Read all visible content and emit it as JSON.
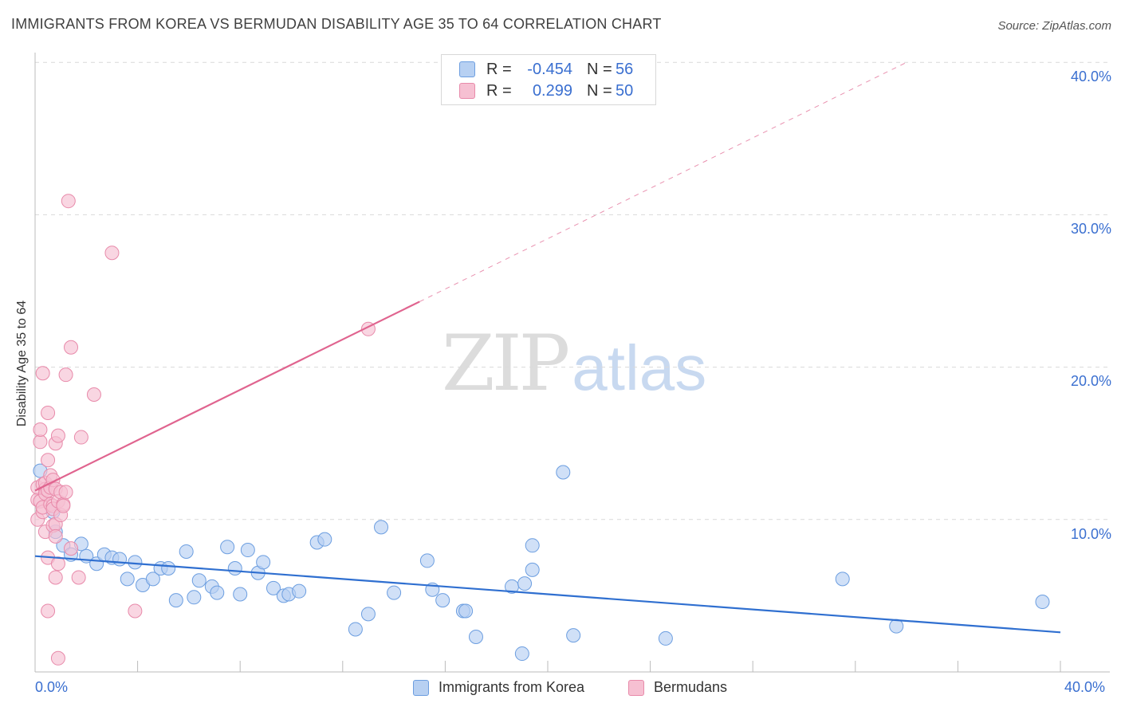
{
  "title": "IMMIGRANTS FROM KOREA VS BERMUDAN DISABILITY AGE 35 TO 64 CORRELATION CHART",
  "source": "Source: ZipAtlas.com",
  "watermark": {
    "zip": "ZIP",
    "atlas": "atlas"
  },
  "legend": {
    "r_label": "R =",
    "n_label": "N =",
    "rows": [
      {
        "r": "-0.454",
        "n": "56"
      },
      {
        "r": "0.299",
        "n": "50"
      }
    ]
  },
  "colors": {
    "blue_fill": "#b7d0f2",
    "blue_stroke": "#6c9ee0",
    "blue_line": "#2f6fd0",
    "pink_fill": "#f6c0d2",
    "pink_stroke": "#e88aaa",
    "pink_line": "#e0648f",
    "grid": "#d9d9d9"
  },
  "chart_data": {
    "type": "scatter",
    "title": "IMMIGRANTS FROM KOREA VS BERMUDAN DISABILITY AGE 35 TO 64 CORRELATION CHART",
    "xlabel": "",
    "ylabel": "Disability Age 35 to 64",
    "xlim": [
      0,
      40
    ],
    "ylim": [
      0,
      40
    ],
    "x_tick_labels": [
      "0.0%",
      "40.0%"
    ],
    "y_tick_labels": [
      "10.0%",
      "20.0%",
      "30.0%",
      "40.0%"
    ],
    "y_ticks": [
      10,
      20,
      30,
      40
    ],
    "legend_position": "bottom",
    "series": [
      {
        "name": "Immigrants from Korea",
        "color": "blue",
        "r": -0.454,
        "n": 56,
        "trend": {
          "x": [
            0,
            40
          ],
          "y": [
            7.6,
            2.6
          ],
          "dashed_from": null
        },
        "points": [
          [
            0.2,
            13.2
          ],
          [
            0.7,
            10.5
          ],
          [
            0.8,
            9.2
          ],
          [
            1.1,
            8.3
          ],
          [
            1.4,
            7.7
          ],
          [
            1.8,
            8.4
          ],
          [
            2.0,
            7.6
          ],
          [
            2.4,
            7.1
          ],
          [
            2.7,
            7.7
          ],
          [
            3.0,
            7.5
          ],
          [
            3.3,
            7.4
          ],
          [
            3.6,
            6.1
          ],
          [
            3.9,
            7.2
          ],
          [
            4.2,
            5.7
          ],
          [
            4.6,
            6.1
          ],
          [
            4.9,
            6.8
          ],
          [
            5.2,
            6.8
          ],
          [
            5.5,
            4.7
          ],
          [
            5.9,
            7.9
          ],
          [
            6.2,
            4.9
          ],
          [
            6.4,
            6.0
          ],
          [
            6.9,
            5.6
          ],
          [
            7.1,
            5.2
          ],
          [
            7.5,
            8.2
          ],
          [
            7.8,
            6.8
          ],
          [
            8.0,
            5.1
          ],
          [
            8.3,
            8.0
          ],
          [
            8.7,
            6.5
          ],
          [
            8.9,
            7.2
          ],
          [
            9.3,
            5.5
          ],
          [
            9.7,
            5.0
          ],
          [
            9.9,
            5.1
          ],
          [
            10.3,
            5.3
          ],
          [
            11.0,
            8.5
          ],
          [
            11.3,
            8.7
          ],
          [
            12.5,
            2.8
          ],
          [
            13.0,
            3.8
          ],
          [
            13.5,
            9.5
          ],
          [
            14.0,
            5.2
          ],
          [
            15.3,
            7.3
          ],
          [
            15.5,
            5.4
          ],
          [
            15.9,
            4.7
          ],
          [
            16.7,
            4.0
          ],
          [
            16.8,
            4.0
          ],
          [
            17.2,
            2.3
          ],
          [
            18.6,
            5.6
          ],
          [
            19.0,
            1.2
          ],
          [
            19.1,
            5.8
          ],
          [
            19.4,
            8.3
          ],
          [
            19.4,
            6.7
          ],
          [
            20.6,
            13.1
          ],
          [
            21.0,
            2.4
          ],
          [
            24.6,
            2.2
          ],
          [
            31.5,
            6.1
          ],
          [
            33.6,
            3.0
          ],
          [
            39.3,
            4.6
          ]
        ]
      },
      {
        "name": "Bermudans",
        "color": "pink",
        "r": 0.299,
        "n": 50,
        "trend": {
          "x": [
            0,
            34
          ],
          "y": [
            11.9,
            40
          ],
          "solid_until_x": 15.0
        },
        "points": [
          [
            0.1,
            10.0
          ],
          [
            0.1,
            11.3
          ],
          [
            0.1,
            12.1
          ],
          [
            0.2,
            15.1
          ],
          [
            0.2,
            15.9
          ],
          [
            0.2,
            11.2
          ],
          [
            0.3,
            10.5
          ],
          [
            0.3,
            12.3
          ],
          [
            0.3,
            19.6
          ],
          [
            0.3,
            10.8
          ],
          [
            0.4,
            12.0
          ],
          [
            0.4,
            12.4
          ],
          [
            0.4,
            11.7
          ],
          [
            0.4,
            9.2
          ],
          [
            0.5,
            17.0
          ],
          [
            0.5,
            11.9
          ],
          [
            0.5,
            13.9
          ],
          [
            0.5,
            7.5
          ],
          [
            0.5,
            4.0
          ],
          [
            0.6,
            12.1
          ],
          [
            0.6,
            11.0
          ],
          [
            0.6,
            12.9
          ],
          [
            0.7,
            12.6
          ],
          [
            0.7,
            10.9
          ],
          [
            0.7,
            10.7
          ],
          [
            0.7,
            9.6
          ],
          [
            0.8,
            9.7
          ],
          [
            0.8,
            8.9
          ],
          [
            0.8,
            6.2
          ],
          [
            0.8,
            15.0
          ],
          [
            0.8,
            12.0
          ],
          [
            0.9,
            11.2
          ],
          [
            0.9,
            0.9
          ],
          [
            0.9,
            7.1
          ],
          [
            0.9,
            15.5
          ],
          [
            1.0,
            11.8
          ],
          [
            1.0,
            10.3
          ],
          [
            1.1,
            11.0
          ],
          [
            1.1,
            10.9
          ],
          [
            1.2,
            19.5
          ],
          [
            1.2,
            11.8
          ],
          [
            1.3,
            30.9
          ],
          [
            1.4,
            21.3
          ],
          [
            1.4,
            8.1
          ],
          [
            1.7,
            6.2
          ],
          [
            2.3,
            18.2
          ],
          [
            3.0,
            27.5
          ],
          [
            3.9,
            4.0
          ],
          [
            13.0,
            22.5
          ],
          [
            1.8,
            15.4
          ]
        ]
      }
    ]
  },
  "bottom_legend": {
    "items": [
      {
        "label": "Immigrants from Korea"
      },
      {
        "label": "Bermudans"
      }
    ]
  }
}
